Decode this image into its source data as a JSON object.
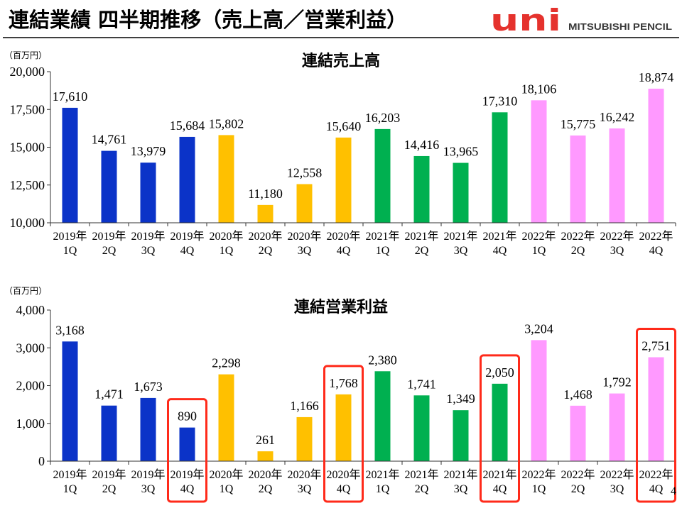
{
  "header": {
    "title": "連結業績 四半期推移（売上高／営業利益）",
    "logo_main": "uni",
    "logo_sub": "MITSUBISHI PENCIL"
  },
  "page_number": "4",
  "colors": {
    "logo": "#E5322D",
    "highlight": "#FF2A1A",
    "by_year": {
      "2019年": "#0B33C8",
      "2020年": "#FFC000",
      "2021年": "#00B050",
      "2022年": "#FF99FF"
    }
  },
  "chart_data": [
    {
      "type": "bar",
      "title": "連結売上高",
      "ylabel": "（百万円）",
      "categories": [
        {
          "year": "2019年",
          "quarter": "1Q"
        },
        {
          "year": "2019年",
          "quarter": "2Q"
        },
        {
          "year": "2019年",
          "quarter": "3Q"
        },
        {
          "year": "2019年",
          "quarter": "4Q"
        },
        {
          "year": "2020年",
          "quarter": "1Q"
        },
        {
          "year": "2020年",
          "quarter": "2Q"
        },
        {
          "year": "2020年",
          "quarter": "3Q"
        },
        {
          "year": "2020年",
          "quarter": "4Q"
        },
        {
          "year": "2021年",
          "quarter": "1Q"
        },
        {
          "year": "2021年",
          "quarter": "2Q"
        },
        {
          "year": "2021年",
          "quarter": "3Q"
        },
        {
          "year": "2021年",
          "quarter": "4Q"
        },
        {
          "year": "2022年",
          "quarter": "1Q"
        },
        {
          "year": "2022年",
          "quarter": "2Q"
        },
        {
          "year": "2022年",
          "quarter": "3Q"
        },
        {
          "year": "2022年",
          "quarter": "4Q"
        }
      ],
      "values": [
        17610,
        14761,
        13979,
        15684,
        15802,
        11180,
        12558,
        15640,
        16203,
        14416,
        13965,
        17310,
        18106,
        15775,
        16242,
        18874
      ],
      "ylim": [
        10000,
        20000
      ],
      "yticks": [
        10000,
        12500,
        15000,
        17500,
        20000
      ],
      "grid": false,
      "highlighted_indices": []
    },
    {
      "type": "bar",
      "title": "連結営業利益",
      "ylabel": "（百万円）",
      "categories": [
        {
          "year": "2019年",
          "quarter": "1Q"
        },
        {
          "year": "2019年",
          "quarter": "2Q"
        },
        {
          "year": "2019年",
          "quarter": "3Q"
        },
        {
          "year": "2019年",
          "quarter": "4Q"
        },
        {
          "year": "2020年",
          "quarter": "1Q"
        },
        {
          "year": "2020年",
          "quarter": "2Q"
        },
        {
          "year": "2020年",
          "quarter": "3Q"
        },
        {
          "year": "2020年",
          "quarter": "4Q"
        },
        {
          "year": "2021年",
          "quarter": "1Q"
        },
        {
          "year": "2021年",
          "quarter": "2Q"
        },
        {
          "year": "2021年",
          "quarter": "3Q"
        },
        {
          "year": "2021年",
          "quarter": "4Q"
        },
        {
          "year": "2022年",
          "quarter": "1Q"
        },
        {
          "year": "2022年",
          "quarter": "2Q"
        },
        {
          "year": "2022年",
          "quarter": "3Q"
        },
        {
          "year": "2022年",
          "quarter": "4Q"
        }
      ],
      "values": [
        3168,
        1471,
        1673,
        890,
        2298,
        261,
        1166,
        1768,
        2380,
        1741,
        1349,
        2050,
        3204,
        1468,
        1792,
        2751
      ],
      "ylim": [
        0,
        4000
      ],
      "yticks": [
        0,
        1000,
        2000,
        3000,
        4000
      ],
      "grid": false,
      "highlighted_indices": [
        3,
        7,
        11,
        15
      ]
    }
  ]
}
